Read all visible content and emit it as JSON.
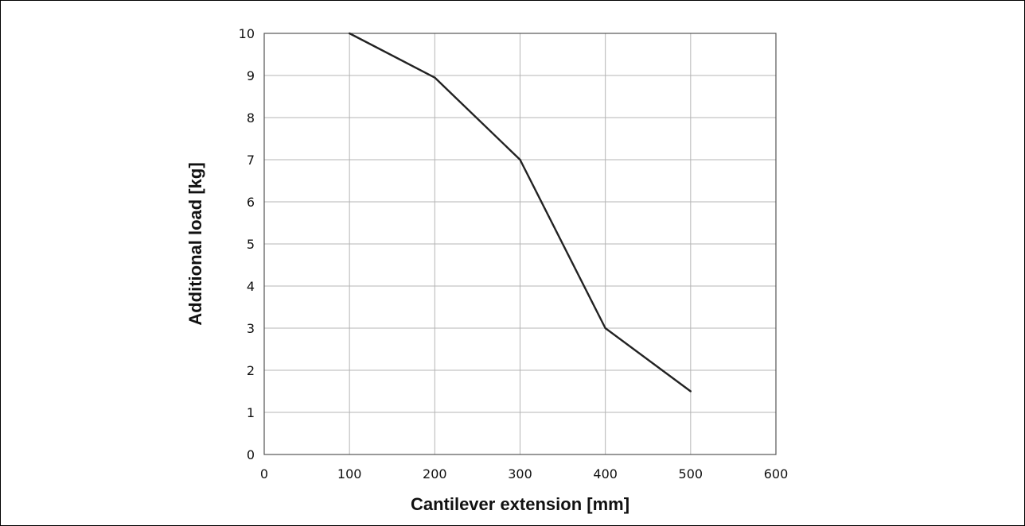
{
  "chart_data": {
    "type": "line",
    "title": "",
    "xlabel": "Cantilever extension [mm]",
    "ylabel": "Additional load [kg]",
    "xlim": [
      0,
      600
    ],
    "ylim": [
      0,
      10
    ],
    "x_ticks": [
      "0",
      "100",
      "200",
      "300",
      "400",
      "500",
      "600"
    ],
    "y_ticks": [
      "0",
      "1",
      "2",
      "3",
      "4",
      "5",
      "6",
      "7",
      "8",
      "9",
      "10"
    ],
    "grid": true,
    "series": [
      {
        "x": [
          100,
          200,
          300,
          400,
          500
        ],
        "y": [
          10,
          8.95,
          7,
          3,
          1.5
        ]
      }
    ],
    "colors": {
      "line": "#222222",
      "grid": "#b5b5b5",
      "axis": "#555555"
    }
  }
}
